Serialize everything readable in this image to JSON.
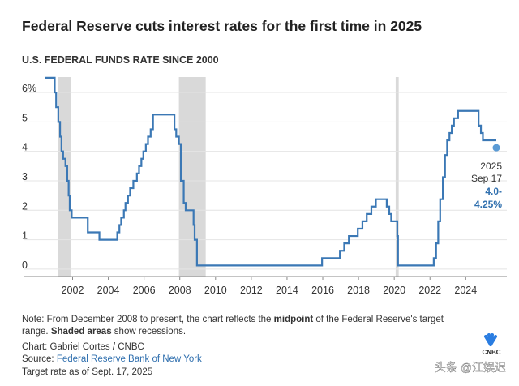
{
  "chart_data": {
    "type": "line",
    "title": "Federal Reserve cuts interest rates for the first time in 2025",
    "subtitle": "U.S. FEDERAL FUNDS RATE SINCE 2000",
    "x": [
      2000.45,
      2001.0,
      2001.0,
      2001.08,
      2001.08,
      2001.2,
      2001.2,
      2001.3,
      2001.3,
      2001.38,
      2001.38,
      2001.47,
      2001.47,
      2001.6,
      2001.6,
      2001.7,
      2001.7,
      2001.78,
      2001.78,
      2001.84,
      2001.84,
      2001.95,
      2001.95,
      2002.85,
      2002.85,
      2003.5,
      2003.5,
      2004.5,
      2004.5,
      2004.62,
      2004.62,
      2004.72,
      2004.72,
      2004.87,
      2004.87,
      2004.96,
      2004.96,
      2005.1,
      2005.1,
      2005.22,
      2005.22,
      2005.4,
      2005.4,
      2005.6,
      2005.6,
      2005.72,
      2005.72,
      2005.85,
      2005.85,
      2005.96,
      2005.96,
      2006.1,
      2006.1,
      2006.22,
      2006.22,
      2006.37,
      2006.37,
      2006.5,
      2006.5,
      2007.7,
      2007.7,
      2007.8,
      2007.8,
      2007.95,
      2007.95,
      2008.06,
      2008.06,
      2008.22,
      2008.22,
      2008.33,
      2008.33,
      2008.77,
      2008.77,
      2008.83,
      2008.83,
      2008.96,
      2008.96,
      2015.96,
      2015.96,
      2016.96,
      2016.96,
      2017.2,
      2017.2,
      2017.46,
      2017.46,
      2017.96,
      2017.96,
      2018.22,
      2018.22,
      2018.46,
      2018.46,
      2018.72,
      2018.72,
      2018.97,
      2018.97,
      2019.58,
      2019.58,
      2019.72,
      2019.72,
      2019.83,
      2019.83,
      2020.17,
      2020.17,
      2020.21,
      2020.21,
      2022.21,
      2022.21,
      2022.34,
      2022.34,
      2022.46,
      2022.46,
      2022.57,
      2022.57,
      2022.72,
      2022.72,
      2022.84,
      2022.84,
      2022.96,
      2022.96,
      2023.09,
      2023.09,
      2023.22,
      2023.22,
      2023.34,
      2023.34,
      2023.57,
      2023.57,
      2024.72,
      2024.72,
      2024.85,
      2024.85,
      2024.96,
      2024.96,
      2025.71
    ],
    "series": [
      {
        "color": "#3b78b5",
        "values": [
          6.5,
          6.5,
          6.0,
          6.0,
          5.5,
          5.5,
          5.0,
          5.0,
          4.5,
          4.5,
          4.0,
          4.0,
          3.75,
          3.75,
          3.5,
          3.5,
          3.0,
          3.0,
          2.5,
          2.5,
          2.0,
          2.0,
          1.75,
          1.75,
          1.25,
          1.25,
          1.0,
          1.0,
          1.25,
          1.25,
          1.5,
          1.5,
          1.75,
          1.75,
          2.0,
          2.0,
          2.25,
          2.25,
          2.5,
          2.5,
          2.75,
          2.75,
          3.0,
          3.0,
          3.25,
          3.25,
          3.5,
          3.5,
          3.75,
          3.75,
          4.0,
          4.0,
          4.25,
          4.25,
          4.5,
          4.5,
          4.75,
          4.75,
          5.25,
          5.25,
          4.75,
          4.75,
          4.5,
          4.5,
          4.25,
          4.25,
          3.0,
          3.0,
          2.25,
          2.25,
          2.0,
          2.0,
          1.5,
          1.5,
          1.0,
          1.0,
          0.125,
          0.125,
          0.375,
          0.375,
          0.625,
          0.625,
          0.875,
          0.875,
          1.125,
          1.125,
          1.375,
          1.375,
          1.625,
          1.625,
          1.875,
          1.875,
          2.125,
          2.125,
          2.375,
          2.375,
          2.125,
          2.125,
          1.875,
          1.875,
          1.625,
          1.625,
          1.125,
          1.125,
          0.125,
          0.125,
          0.375,
          0.375,
          0.875,
          0.875,
          1.625,
          1.625,
          2.375,
          2.375,
          3.125,
          3.125,
          3.875,
          3.875,
          4.375,
          4.375,
          4.625,
          4.625,
          4.875,
          4.875,
          5.125,
          5.125,
          5.375,
          5.375,
          4.875,
          4.875,
          4.625,
          4.625,
          4.375,
          4.375
        ]
      }
    ],
    "point": {
      "x": 2025.71,
      "value": 4.125,
      "color": "#5b9bd5"
    },
    "recessions": [
      [
        2001.2,
        2001.9
      ],
      [
        2007.95,
        2009.45
      ],
      [
        2020.08,
        2020.25
      ]
    ],
    "recession_color": "#d9d9d9",
    "xlim": [
      1999.3,
      2026.3
    ],
    "xticks": [
      2002,
      2004,
      2006,
      2008,
      2010,
      2012,
      2014,
      2016,
      2018,
      2020,
      2022,
      2024
    ],
    "ylim": [
      -0.25,
      6.8
    ],
    "yticks": [
      0,
      1,
      2,
      3,
      4,
      5,
      {
        "value": 6,
        "label": "6%"
      }
    ],
    "grid": true,
    "annotation": [
      "2025",
      "Sep 17",
      "4.0-",
      "4.25%"
    ],
    "note": [
      [
        "Note: From December 2008 to present, the chart reflects the ",
        "midpoint",
        " of the Federal Reserve's target"
      ],
      [
        "range. ",
        "Shaded areas",
        " show recessions."
      ]
    ],
    "credit": "Chart: Gabriel Cortes / CNBC",
    "source_label": "Source: ",
    "source": "Federal Reserve Bank of New York",
    "as_of": "Target rate as of Sept. 17, 2025",
    "logo": "CNBC",
    "watermark": "头条 @江娱迟"
  }
}
